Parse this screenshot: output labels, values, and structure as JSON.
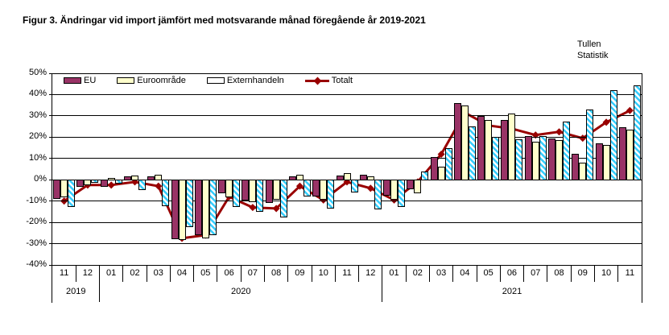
{
  "title": "Figur 3. Ändringar vid import jämfört med motsvarande månad föregående år 2019-2021",
  "source": {
    "line1": "Tullen",
    "line2": "Statistik"
  },
  "chart_data": {
    "type": "bar",
    "subtype": "grouped-bars-with-line-overlay",
    "title": "Figur 3. Ändringar vid import jämfört med motsvarande månad föregående år 2019-2021",
    "xlabel": "",
    "ylabel": "",
    "ylim": [
      -40,
      50
    ],
    "ytick_step": 10,
    "ytick_labels": [
      "50%",
      "40%",
      "30%",
      "20%",
      "10%",
      "0%",
      "-10%",
      "-20%",
      "-30%",
      "-40%"
    ],
    "grid": true,
    "legend_position": "top-left-inside",
    "categories": [
      "11",
      "12",
      "01",
      "02",
      "03",
      "04",
      "05",
      "06",
      "07",
      "08",
      "09",
      "10",
      "11",
      "12",
      "01",
      "02",
      "03",
      "04",
      "05",
      "06",
      "07",
      "08",
      "09",
      "10",
      "11"
    ],
    "year_groups": [
      {
        "label": "2019",
        "span": 2
      },
      {
        "label": "2020",
        "span": 12
      },
      {
        "label": "2021",
        "span": 11
      }
    ],
    "series": [
      {
        "name": "EU",
        "type": "bar",
        "color": "#993366",
        "pattern": "solid",
        "values": [
          -8.5,
          -3,
          -3,
          1.5,
          1.5,
          -27.5,
          -25.5,
          -6,
          -9.5,
          -10.5,
          1.5,
          -7.5,
          2,
          2.5,
          -7,
          -4,
          10.5,
          36,
          30,
          28,
          20.5,
          19.5,
          12,
          17,
          24.5
        ]
      },
      {
        "name": "Euroområde",
        "type": "bar",
        "color": "#FFFFCC",
        "pattern": "solid",
        "values": [
          -8,
          -2,
          1,
          2,
          2.5,
          -28,
          -27,
          -8,
          -10,
          -9,
          2.5,
          -9,
          3,
          1.5,
          -9,
          -6,
          6,
          35,
          28,
          31,
          18,
          18.5,
          8,
          16.5,
          23.5
        ]
      },
      {
        "name": "Externhandeln",
        "type": "bar",
        "color": "#33CCFF",
        "pattern": "diagonal-stripes",
        "values": [
          -12.5,
          -1,
          -1.5,
          -4.5,
          -12,
          -22,
          -25.5,
          -12.5,
          -14.5,
          -17.5,
          -7.5,
          -13,
          -5.5,
          -13.5,
          -12.5,
          4,
          15,
          25,
          20,
          19,
          20.5,
          27.5,
          33,
          42,
          44.5
        ]
      },
      {
        "name": "Totalt",
        "type": "line",
        "color": "#990000",
        "marker": "diamond",
        "values": [
          -10,
          -2.5,
          -2.5,
          -1,
          -3,
          -27.5,
          -26,
          -8,
          -13,
          -13.5,
          -3,
          -9.5,
          -1,
          -4,
          -9.5,
          -1,
          12,
          31.5,
          25.5,
          24,
          21,
          22.5,
          19.5,
          27,
          32.5
        ]
      }
    ]
  }
}
